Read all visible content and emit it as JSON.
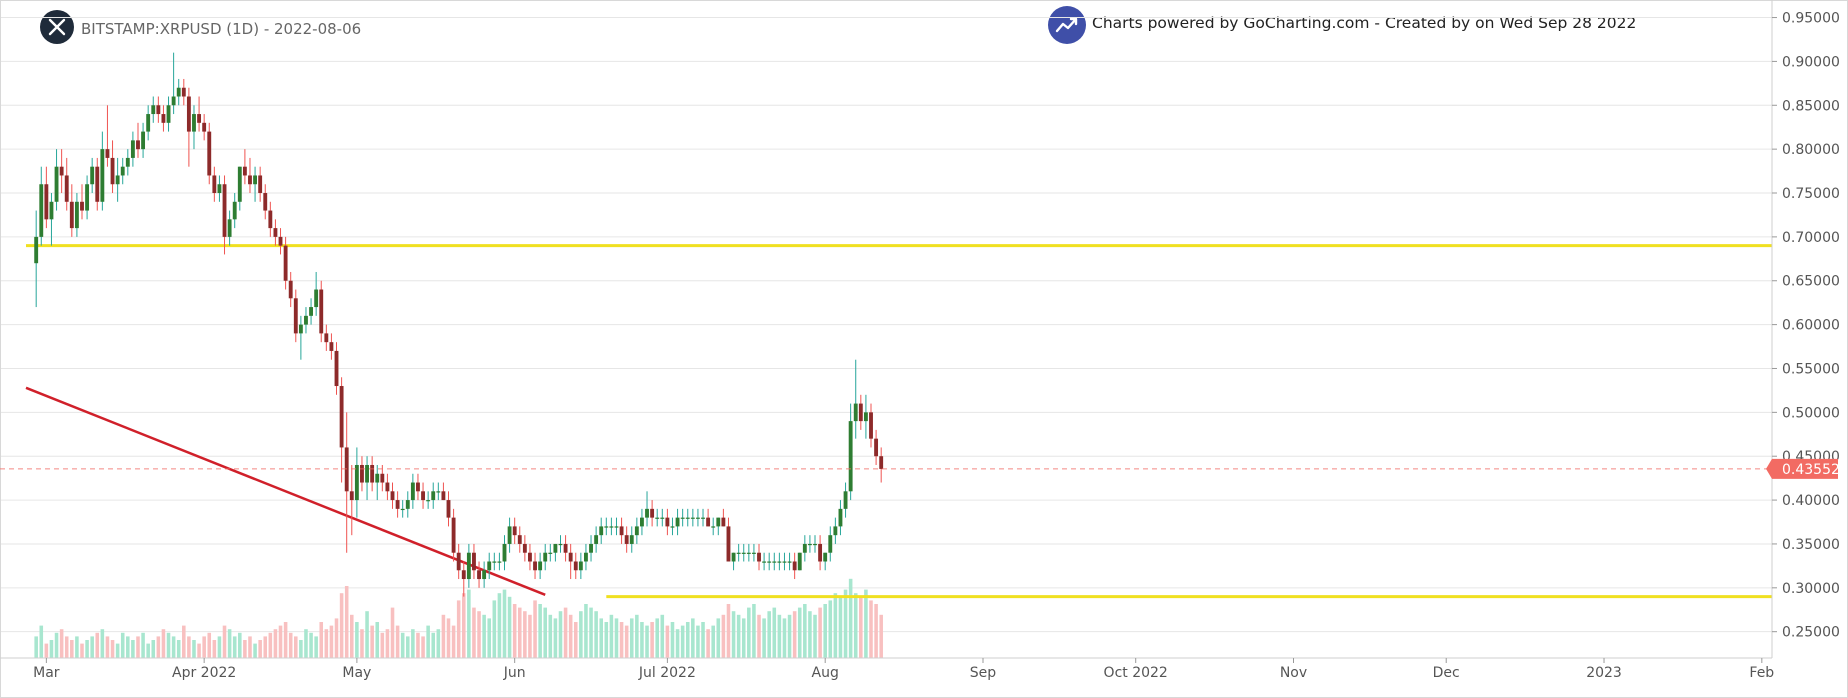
{
  "header": {
    "symbol": "BITSTAMP:XRPUSD (1D) - 2022-08-06",
    "credit": "Charts powered by GoCharting.com - Created by  on Wed Sep 28 2022",
    "symbol_icon": "xrp-logo-icon",
    "credit_icon": "trend-up-icon"
  },
  "colors": {
    "up": "#26a69a",
    "down": "#ef5350",
    "up_body": "#2e7d32",
    "down_body": "#8d2a2a",
    "up_volume": "#a8e6cf",
    "down_volume": "#f8c0c0",
    "support_line": "#f0e020",
    "trend_line": "#d0202a",
    "price_tag": "#f26b63"
  },
  "chart_data": {
    "type": "candlestick",
    "title": "BITSTAMP:XRPUSD (1D) - 2022-08-06",
    "ylim": [
      0.22,
      0.97
    ],
    "xlim": [
      "2022-02-25",
      "2023-02-03"
    ],
    "y_ticks": [
      "0.25000",
      "0.30000",
      "0.35000",
      "0.40000",
      "0.45000",
      "0.50000",
      "0.55000",
      "0.60000",
      "0.65000",
      "0.70000",
      "0.75000",
      "0.80000",
      "0.85000",
      "0.90000",
      "0.95000"
    ],
    "x_ticks": [
      {
        "date": "2022-03-01",
        "label": "Mar"
      },
      {
        "date": "2022-04-01",
        "label": "Apr 2022"
      },
      {
        "date": "2022-05-01",
        "label": "May"
      },
      {
        "date": "2022-06-01",
        "label": "Jun"
      },
      {
        "date": "2022-07-01",
        "label": "Jul 2022"
      },
      {
        "date": "2022-08-01",
        "label": "Aug"
      },
      {
        "date": "2022-09-01",
        "label": "Sep"
      },
      {
        "date": "2022-10-01",
        "label": "Oct 2022"
      },
      {
        "date": "2022-11-01",
        "label": "Nov"
      },
      {
        "date": "2022-12-01",
        "label": "Dec"
      },
      {
        "date": "2023-01-01",
        "label": "2023"
      },
      {
        "date": "2023-02-01",
        "label": "Feb"
      }
    ],
    "last_price": "0.43552",
    "first_date": "2022-02-27",
    "horizontal_lines": [
      {
        "price": 0.69,
        "start": "2022-02-25",
        "end": "2023-02-03"
      },
      {
        "price": 0.29,
        "start": "2022-06-19",
        "end": "2023-02-03"
      }
    ],
    "trend_line": {
      "start": {
        "date": "2022-02-25",
        "price": 0.528
      },
      "end": {
        "date": "2022-06-07",
        "price": 0.292
      }
    },
    "candles": [
      [
        0.67,
        0.73,
        0.62,
        0.7
      ],
      [
        0.7,
        0.78,
        0.69,
        0.76
      ],
      [
        0.76,
        0.78,
        0.71,
        0.72
      ],
      [
        0.72,
        0.75,
        0.69,
        0.74
      ],
      [
        0.74,
        0.8,
        0.73,
        0.78
      ],
      [
        0.78,
        0.8,
        0.75,
        0.77
      ],
      [
        0.77,
        0.79,
        0.73,
        0.74
      ],
      [
        0.74,
        0.76,
        0.7,
        0.71
      ],
      [
        0.71,
        0.75,
        0.7,
        0.74
      ],
      [
        0.74,
        0.76,
        0.72,
        0.73
      ],
      [
        0.73,
        0.77,
        0.72,
        0.76
      ],
      [
        0.76,
        0.79,
        0.75,
        0.78
      ],
      [
        0.78,
        0.79,
        0.73,
        0.74
      ],
      [
        0.74,
        0.82,
        0.73,
        0.8
      ],
      [
        0.8,
        0.85,
        0.78,
        0.79
      ],
      [
        0.79,
        0.81,
        0.75,
        0.76
      ],
      [
        0.76,
        0.79,
        0.74,
        0.77
      ],
      [
        0.77,
        0.79,
        0.76,
        0.78
      ],
      [
        0.78,
        0.8,
        0.77,
        0.79
      ],
      [
        0.79,
        0.82,
        0.78,
        0.81
      ],
      [
        0.81,
        0.83,
        0.79,
        0.8
      ],
      [
        0.8,
        0.83,
        0.79,
        0.82
      ],
      [
        0.82,
        0.85,
        0.81,
        0.84
      ],
      [
        0.84,
        0.86,
        0.83,
        0.85
      ],
      [
        0.85,
        0.86,
        0.83,
        0.84
      ],
      [
        0.84,
        0.85,
        0.82,
        0.83
      ],
      [
        0.83,
        0.86,
        0.82,
        0.85
      ],
      [
        0.85,
        0.91,
        0.84,
        0.86
      ],
      [
        0.86,
        0.88,
        0.85,
        0.87
      ],
      [
        0.87,
        0.88,
        0.85,
        0.86
      ],
      [
        0.86,
        0.87,
        0.78,
        0.82
      ],
      [
        0.82,
        0.85,
        0.8,
        0.84
      ],
      [
        0.84,
        0.86,
        0.82,
        0.83
      ],
      [
        0.83,
        0.84,
        0.81,
        0.82
      ],
      [
        0.82,
        0.83,
        0.76,
        0.77
      ],
      [
        0.77,
        0.78,
        0.74,
        0.75
      ],
      [
        0.75,
        0.77,
        0.74,
        0.76
      ],
      [
        0.76,
        0.77,
        0.68,
        0.7
      ],
      [
        0.7,
        0.73,
        0.69,
        0.72
      ],
      [
        0.72,
        0.75,
        0.71,
        0.74
      ],
      [
        0.74,
        0.78,
        0.73,
        0.78
      ],
      [
        0.78,
        0.8,
        0.76,
        0.77
      ],
      [
        0.77,
        0.79,
        0.75,
        0.76
      ],
      [
        0.76,
        0.78,
        0.74,
        0.77
      ],
      [
        0.77,
        0.78,
        0.74,
        0.75
      ],
      [
        0.75,
        0.76,
        0.72,
        0.73
      ],
      [
        0.73,
        0.74,
        0.7,
        0.71
      ],
      [
        0.71,
        0.72,
        0.69,
        0.7
      ],
      [
        0.7,
        0.71,
        0.68,
        0.69
      ],
      [
        0.69,
        0.7,
        0.64,
        0.65
      ],
      [
        0.65,
        0.66,
        0.62,
        0.63
      ],
      [
        0.63,
        0.64,
        0.58,
        0.59
      ],
      [
        0.59,
        0.61,
        0.56,
        0.6
      ],
      [
        0.6,
        0.62,
        0.59,
        0.61
      ],
      [
        0.61,
        0.63,
        0.6,
        0.62
      ],
      [
        0.62,
        0.66,
        0.61,
        0.64
      ],
      [
        0.64,
        0.65,
        0.58,
        0.59
      ],
      [
        0.59,
        0.6,
        0.57,
        0.58
      ],
      [
        0.58,
        0.59,
        0.56,
        0.57
      ],
      [
        0.57,
        0.58,
        0.52,
        0.53
      ],
      [
        0.53,
        0.54,
        0.42,
        0.46
      ],
      [
        0.46,
        0.5,
        0.34,
        0.41
      ],
      [
        0.41,
        0.44,
        0.36,
        0.4
      ],
      [
        0.4,
        0.46,
        0.38,
        0.44
      ],
      [
        0.44,
        0.45,
        0.41,
        0.42
      ],
      [
        0.42,
        0.45,
        0.4,
        0.44
      ],
      [
        0.44,
        0.45,
        0.41,
        0.42
      ],
      [
        0.42,
        0.44,
        0.4,
        0.43
      ],
      [
        0.43,
        0.44,
        0.41,
        0.42
      ],
      [
        0.42,
        0.43,
        0.4,
        0.41
      ],
      [
        0.41,
        0.42,
        0.39,
        0.4
      ],
      [
        0.4,
        0.41,
        0.38,
        0.39
      ],
      [
        0.39,
        0.4,
        0.38,
        0.39
      ],
      [
        0.39,
        0.41,
        0.38,
        0.4
      ],
      [
        0.4,
        0.43,
        0.39,
        0.42
      ],
      [
        0.42,
        0.43,
        0.4,
        0.41
      ],
      [
        0.41,
        0.42,
        0.39,
        0.4
      ],
      [
        0.4,
        0.41,
        0.39,
        0.4
      ],
      [
        0.4,
        0.42,
        0.39,
        0.41
      ],
      [
        0.41,
        0.42,
        0.4,
        0.41
      ],
      [
        0.41,
        0.42,
        0.4,
        0.4
      ],
      [
        0.4,
        0.41,
        0.37,
        0.38
      ],
      [
        0.38,
        0.39,
        0.33,
        0.34
      ],
      [
        0.34,
        0.35,
        0.31,
        0.32
      ],
      [
        0.32,
        0.33,
        0.29,
        0.31
      ],
      [
        0.31,
        0.35,
        0.3,
        0.34
      ],
      [
        0.34,
        0.35,
        0.31,
        0.32
      ],
      [
        0.32,
        0.33,
        0.3,
        0.31
      ],
      [
        0.31,
        0.33,
        0.3,
        0.32
      ],
      [
        0.32,
        0.34,
        0.31,
        0.33
      ],
      [
        0.33,
        0.34,
        0.32,
        0.33
      ],
      [
        0.33,
        0.34,
        0.32,
        0.33
      ],
      [
        0.33,
        0.36,
        0.32,
        0.35
      ],
      [
        0.35,
        0.38,
        0.34,
        0.37
      ],
      [
        0.37,
        0.38,
        0.35,
        0.36
      ],
      [
        0.36,
        0.37,
        0.34,
        0.35
      ],
      [
        0.35,
        0.36,
        0.33,
        0.34
      ],
      [
        0.34,
        0.35,
        0.32,
        0.33
      ],
      [
        0.33,
        0.34,
        0.31,
        0.32
      ],
      [
        0.32,
        0.34,
        0.31,
        0.33
      ],
      [
        0.33,
        0.35,
        0.32,
        0.34
      ],
      [
        0.34,
        0.35,
        0.33,
        0.34
      ],
      [
        0.34,
        0.35,
        0.33,
        0.35
      ],
      [
        0.35,
        0.36,
        0.34,
        0.35
      ],
      [
        0.35,
        0.36,
        0.33,
        0.34
      ],
      [
        0.34,
        0.35,
        0.31,
        0.33
      ],
      [
        0.33,
        0.34,
        0.31,
        0.32
      ],
      [
        0.32,
        0.34,
        0.31,
        0.33
      ],
      [
        0.33,
        0.35,
        0.32,
        0.34
      ],
      [
        0.34,
        0.36,
        0.33,
        0.35
      ],
      [
        0.35,
        0.37,
        0.34,
        0.36
      ],
      [
        0.36,
        0.38,
        0.35,
        0.37
      ],
      [
        0.37,
        0.38,
        0.36,
        0.37
      ],
      [
        0.37,
        0.38,
        0.36,
        0.37
      ],
      [
        0.37,
        0.38,
        0.36,
        0.37
      ],
      [
        0.37,
        0.38,
        0.35,
        0.36
      ],
      [
        0.36,
        0.37,
        0.34,
        0.35
      ],
      [
        0.35,
        0.37,
        0.34,
        0.36
      ],
      [
        0.36,
        0.38,
        0.35,
        0.37
      ],
      [
        0.37,
        0.39,
        0.36,
        0.38
      ],
      [
        0.38,
        0.41,
        0.37,
        0.39
      ],
      [
        0.39,
        0.4,
        0.37,
        0.38
      ],
      [
        0.38,
        0.39,
        0.37,
        0.38
      ],
      [
        0.38,
        0.39,
        0.37,
        0.38
      ],
      [
        0.38,
        0.39,
        0.36,
        0.37
      ],
      [
        0.37,
        0.38,
        0.36,
        0.37
      ],
      [
        0.37,
        0.39,
        0.36,
        0.38
      ],
      [
        0.38,
        0.39,
        0.37,
        0.38
      ],
      [
        0.38,
        0.39,
        0.37,
        0.38
      ],
      [
        0.38,
        0.39,
        0.37,
        0.38
      ],
      [
        0.38,
        0.39,
        0.37,
        0.38
      ],
      [
        0.38,
        0.39,
        0.37,
        0.38
      ],
      [
        0.38,
        0.39,
        0.37,
        0.37
      ],
      [
        0.37,
        0.38,
        0.36,
        0.37
      ],
      [
        0.37,
        0.38,
        0.36,
        0.38
      ],
      [
        0.38,
        0.39,
        0.37,
        0.37
      ],
      [
        0.37,
        0.38,
        0.33,
        0.33
      ],
      [
        0.33,
        0.34,
        0.32,
        0.34
      ],
      [
        0.34,
        0.35,
        0.33,
        0.34
      ],
      [
        0.34,
        0.35,
        0.33,
        0.34
      ],
      [
        0.34,
        0.35,
        0.33,
        0.34
      ],
      [
        0.34,
        0.35,
        0.33,
        0.34
      ],
      [
        0.34,
        0.35,
        0.32,
        0.33
      ],
      [
        0.33,
        0.34,
        0.32,
        0.33
      ],
      [
        0.33,
        0.34,
        0.32,
        0.33
      ],
      [
        0.33,
        0.34,
        0.32,
        0.33
      ],
      [
        0.33,
        0.34,
        0.32,
        0.33
      ],
      [
        0.33,
        0.34,
        0.32,
        0.33
      ],
      [
        0.33,
        0.34,
        0.32,
        0.33
      ],
      [
        0.33,
        0.34,
        0.31,
        0.32
      ],
      [
        0.32,
        0.34,
        0.32,
        0.34
      ],
      [
        0.34,
        0.36,
        0.33,
        0.35
      ],
      [
        0.35,
        0.36,
        0.34,
        0.35
      ],
      [
        0.35,
        0.36,
        0.34,
        0.35
      ],
      [
        0.35,
        0.36,
        0.32,
        0.33
      ],
      [
        0.33,
        0.34,
        0.32,
        0.34
      ],
      [
        0.34,
        0.37,
        0.33,
        0.36
      ],
      [
        0.36,
        0.38,
        0.35,
        0.37
      ],
      [
        0.37,
        0.4,
        0.36,
        0.39
      ],
      [
        0.39,
        0.42,
        0.38,
        0.41
      ],
      [
        0.41,
        0.51,
        0.4,
        0.49
      ],
      [
        0.49,
        0.56,
        0.47,
        0.51
      ],
      [
        0.51,
        0.52,
        0.48,
        0.49
      ],
      [
        0.49,
        0.52,
        0.47,
        0.5
      ],
      [
        0.5,
        0.51,
        0.46,
        0.47
      ],
      [
        0.47,
        0.48,
        0.44,
        0.45
      ],
      [
        0.45,
        0.46,
        0.42,
        0.43552
      ]
    ],
    "volumes": [
      0.3,
      0.45,
      0.2,
      0.25,
      0.35,
      0.4,
      0.3,
      0.25,
      0.3,
      0.2,
      0.25,
      0.3,
      0.35,
      0.4,
      0.3,
      0.25,
      0.2,
      0.35,
      0.3,
      0.25,
      0.3,
      0.35,
      0.2,
      0.25,
      0.3,
      0.4,
      0.35,
      0.3,
      0.25,
      0.45,
      0.3,
      0.25,
      0.2,
      0.3,
      0.35,
      0.25,
      0.3,
      0.45,
      0.4,
      0.3,
      0.35,
      0.25,
      0.3,
      0.2,
      0.25,
      0.3,
      0.35,
      0.4,
      0.45,
      0.5,
      0.35,
      0.3,
      0.25,
      0.4,
      0.35,
      0.3,
      0.5,
      0.4,
      0.45,
      0.55,
      0.9,
      1.0,
      0.6,
      0.5,
      0.4,
      0.65,
      0.45,
      0.5,
      0.35,
      0.4,
      0.7,
      0.45,
      0.35,
      0.3,
      0.4,
      0.35,
      0.3,
      0.45,
      0.35,
      0.4,
      0.6,
      0.55,
      0.45,
      0.8,
      0.9,
      0.95,
      0.7,
      0.65,
      0.6,
      0.55,
      0.8,
      0.9,
      0.95,
      0.85,
      0.75,
      0.7,
      0.65,
      0.6,
      0.8,
      0.75,
      0.7,
      0.6,
      0.55,
      0.65,
      0.7,
      0.6,
      0.5,
      0.65,
      0.75,
      0.7,
      0.65,
      0.55,
      0.5,
      0.6,
      0.55,
      0.5,
      0.45,
      0.55,
      0.6,
      0.5,
      0.45,
      0.5,
      0.55,
      0.6,
      0.45,
      0.5,
      0.4,
      0.45,
      0.5,
      0.55,
      0.45,
      0.5,
      0.4,
      0.45,
      0.55,
      0.6,
      0.75,
      0.65,
      0.6,
      0.55,
      0.7,
      0.75,
      0.6,
      0.55,
      0.65,
      0.7,
      0.6,
      0.55,
      0.6,
      0.65,
      0.7,
      0.75,
      0.65,
      0.6,
      0.7,
      0.75,
      0.8,
      0.9,
      0.85,
      0.95,
      1.1,
      0.9,
      0.85,
      0.95,
      0.8,
      0.75,
      0.6
    ]
  }
}
